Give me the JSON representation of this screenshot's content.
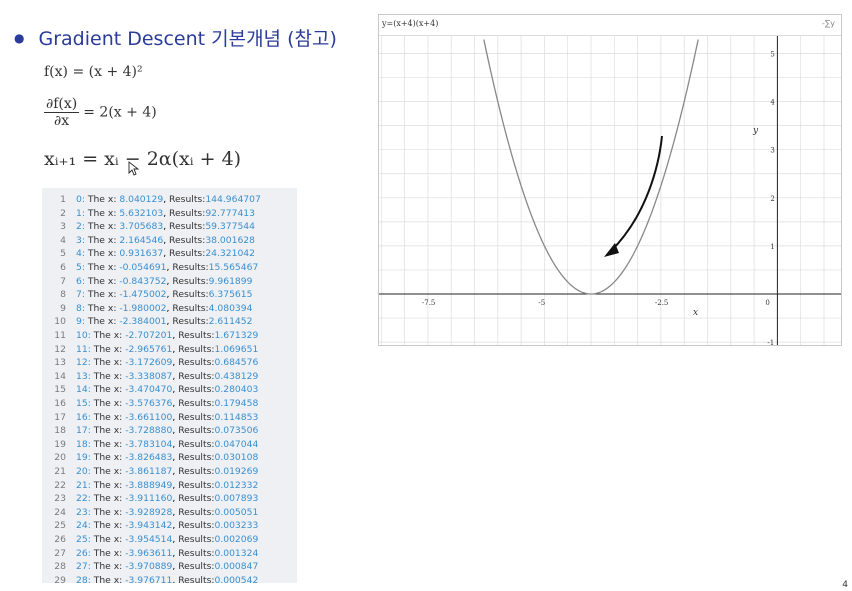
{
  "slide": {
    "title": "Gradient Descent 기본개념 (참고)"
  },
  "equations": {
    "eq1": "f(x) = (x + 4)²",
    "eq2_num": "∂f(x)",
    "eq2_den": "∂x",
    "eq2_rhs": "= 2(x + 4)",
    "eq3": "xᵢ₊₁ = xᵢ − 2α(xᵢ + 4)"
  },
  "code": {
    "lines": [
      {
        "ln": "1",
        "idx": "0:",
        "text": "The x:",
        "x": "8.040129",
        "rlabel": "Results:",
        "res": "144.964707"
      },
      {
        "ln": "2",
        "idx": "1:",
        "text": "The x:",
        "x": "5.632103",
        "rlabel": "Results:",
        "res": "92.777413"
      },
      {
        "ln": "3",
        "idx": "2:",
        "text": "The x:",
        "x": "3.705683",
        "rlabel": "Results:",
        "res": "59.377544"
      },
      {
        "ln": "4",
        "idx": "3:",
        "text": "The x:",
        "x": "2.164546",
        "rlabel": "Results:",
        "res": "38.001628"
      },
      {
        "ln": "5",
        "idx": "4:",
        "text": "The x:",
        "x": "0.931637",
        "rlabel": "Results:",
        "res": "24.321042"
      },
      {
        "ln": "6",
        "idx": "5:",
        "text": "The x:",
        "x": "-0.054691",
        "rlabel": "Results:",
        "res": "15.565467"
      },
      {
        "ln": "7",
        "idx": "6:",
        "text": "The x:",
        "x": "-0.843752",
        "rlabel": "Results:",
        "res": "9.961899"
      },
      {
        "ln": "8",
        "idx": "7:",
        "text": "The x:",
        "x": "-1.475002",
        "rlabel": "Results:",
        "res": "6.375615"
      },
      {
        "ln": "9",
        "idx": "8:",
        "text": "The x:",
        "x": "-1.980002",
        "rlabel": "Results:",
        "res": "4.080394"
      },
      {
        "ln": "10",
        "idx": "9:",
        "text": "The x:",
        "x": "-2.384001",
        "rlabel": "Results:",
        "res": "2.611452"
      },
      {
        "ln": "11",
        "idx": "10:",
        "text": "The x:",
        "x": "-2.707201",
        "rlabel": "Results:",
        "res": "1.671329"
      },
      {
        "ln": "12",
        "idx": "11:",
        "text": "The x:",
        "x": "-2.965761",
        "rlabel": "Results:",
        "res": "1.069651"
      },
      {
        "ln": "13",
        "idx": "12:",
        "text": "The x:",
        "x": "-3.172609",
        "rlabel": "Results:",
        "res": "0.684576"
      },
      {
        "ln": "14",
        "idx": "13:",
        "text": "The x:",
        "x": "-3.338087",
        "rlabel": "Results:",
        "res": "0.438129"
      },
      {
        "ln": "15",
        "idx": "14:",
        "text": "The x:",
        "x": "-3.470470",
        "rlabel": "Results:",
        "res": "0.280403"
      },
      {
        "ln": "16",
        "idx": "15:",
        "text": "The x:",
        "x": "-3.576376",
        "rlabel": "Results:",
        "res": "0.179458"
      },
      {
        "ln": "17",
        "idx": "16:",
        "text": "The x:",
        "x": "-3.661100",
        "rlabel": "Results:",
        "res": "0.114853"
      },
      {
        "ln": "18",
        "idx": "17:",
        "text": "The x:",
        "x": "-3.728880",
        "rlabel": "Results:",
        "res": "0.073506"
      },
      {
        "ln": "19",
        "idx": "18:",
        "text": "The x:",
        "x": "-3.783104",
        "rlabel": "Results:",
        "res": "0.047044"
      },
      {
        "ln": "20",
        "idx": "19:",
        "text": "The x:",
        "x": "-3.826483",
        "rlabel": "Results:",
        "res": "0.030108"
      },
      {
        "ln": "21",
        "idx": "20:",
        "text": "The x:",
        "x": "-3.861187",
        "rlabel": "Results:",
        "res": "0.019269"
      },
      {
        "ln": "22",
        "idx": "21:",
        "text": "The x:",
        "x": "-3.888949",
        "rlabel": "Results:",
        "res": "0.012332"
      },
      {
        "ln": "23",
        "idx": "22:",
        "text": "The x:",
        "x": "-3.911160",
        "rlabel": "Results:",
        "res": "0.007893"
      },
      {
        "ln": "24",
        "idx": "23:",
        "text": "The x:",
        "x": "-3.928928",
        "rlabel": "Results:",
        "res": "0.005051"
      },
      {
        "ln": "25",
        "idx": "24:",
        "text": "The x:",
        "x": "-3.943142",
        "rlabel": "Results:",
        "res": "0.003233"
      },
      {
        "ln": "26",
        "idx": "25:",
        "text": "The x:",
        "x": "-3.954514",
        "rlabel": "Results:",
        "res": "0.002069"
      },
      {
        "ln": "27",
        "idx": "26:",
        "text": "The x:",
        "x": "-3.963611",
        "rlabel": "Results:",
        "res": "0.001324"
      },
      {
        "ln": "28",
        "idx": "27:",
        "text": "The x:",
        "x": "-3.970889",
        "rlabel": "Results:",
        "res": "0.000847"
      },
      {
        "ln": "29",
        "idx": "28:",
        "text": "The x:",
        "x": "-3.976711",
        "rlabel": "Results:",
        "res": "0.000542"
      }
    ]
  },
  "graph": {
    "equation": "y=(x+4)(x+4)",
    "icon": "-∑y",
    "x_axis_label": "x",
    "y_axis_label": "y",
    "x_ticks": [
      "-7.5",
      "-5",
      "-2.5",
      "0"
    ],
    "y_ticks": [
      "5",
      "4",
      "3",
      "2",
      "1",
      "-1"
    ]
  },
  "chart_data": {
    "type": "line",
    "title": "y=(x+4)(x+4)",
    "xlabel": "x",
    "ylabel": "y",
    "xlim": [
      -9,
      2
    ],
    "ylim": [
      -1,
      5.2
    ],
    "grid": true,
    "series": [
      {
        "x": [
          -6.2,
          -6.0,
          -5.5,
          -5.0,
          -4.5,
          -4.0,
          -3.5,
          -3.0,
          -2.5,
          -2.0,
          -1.8
        ],
        "values": [
          4.84,
          4.0,
          2.25,
          1.0,
          0.25,
          0.0,
          0.25,
          1.0,
          2.25,
          4.0,
          4.84
        ]
      }
    ]
  },
  "colors": {
    "title": "#2a3b9a",
    "code_bg": "#eef0f3",
    "code_number": "#3a8fd0",
    "curve": "#888888",
    "grid": "#dddddd"
  },
  "corner_mark": "4"
}
